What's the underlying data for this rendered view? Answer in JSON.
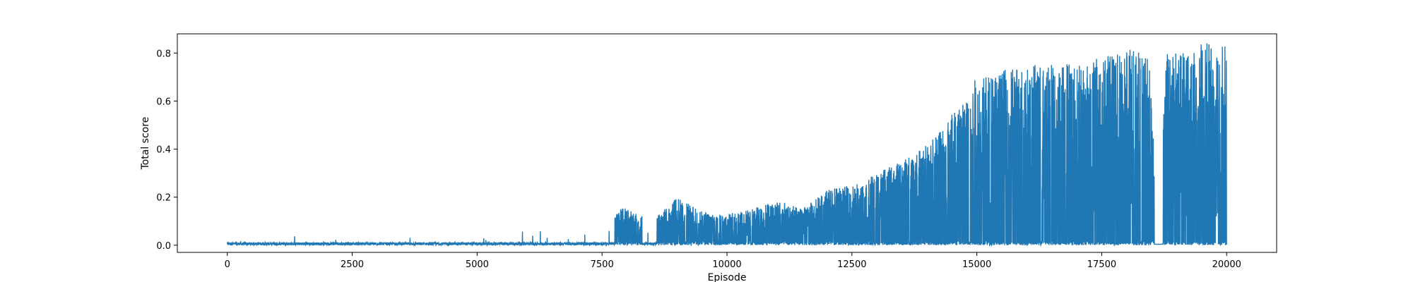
{
  "chart_data": {
    "type": "line",
    "title": "",
    "xlabel": "Episode",
    "ylabel": "Total score",
    "xlim": [
      -1000,
      21000
    ],
    "ylim": [
      -0.03,
      0.88
    ],
    "xticks": [
      0,
      2500,
      5000,
      7500,
      10000,
      12500,
      15000,
      17500,
      20000
    ],
    "yticks": [
      0.0,
      0.2,
      0.4,
      0.6,
      0.8
    ],
    "grid": false,
    "legend": "none",
    "colors": {
      "series": "#1f77b4",
      "axes": "#000000"
    },
    "series": [
      {
        "episodes": 20000,
        "min_score": 0.0,
        "max_score": 0.84,
        "envelope": [
          [
            0,
            0.01
          ],
          [
            1000,
            0.01
          ],
          [
            1300,
            0.08
          ],
          [
            1400,
            0.01
          ],
          [
            2300,
            0.03
          ],
          [
            3000,
            0.03
          ],
          [
            3500,
            0.09
          ],
          [
            4300,
            0.08
          ],
          [
            5000,
            0.03
          ],
          [
            5500,
            0.05
          ],
          [
            5900,
            0.08
          ],
          [
            6300,
            0.06
          ],
          [
            7000,
            0.05
          ],
          [
            7500,
            0.05
          ],
          [
            7900,
            0.16
          ],
          [
            8500,
            0.1
          ],
          [
            9000,
            0.2
          ],
          [
            9500,
            0.14
          ],
          [
            10000,
            0.13
          ],
          [
            10500,
            0.15
          ],
          [
            11000,
            0.19
          ],
          [
            11500,
            0.15
          ],
          [
            12000,
            0.23
          ],
          [
            12500,
            0.25
          ],
          [
            13000,
            0.3
          ],
          [
            13500,
            0.35
          ],
          [
            14000,
            0.42
          ],
          [
            14500,
            0.56
          ],
          [
            15000,
            0.7
          ],
          [
            15500,
            0.73
          ],
          [
            16000,
            0.75
          ],
          [
            16500,
            0.76
          ],
          [
            17000,
            0.77
          ],
          [
            17500,
            0.78
          ],
          [
            18000,
            0.82
          ],
          [
            18400,
            0.8
          ],
          [
            18500,
            0.7
          ],
          [
            18600,
            0.01
          ],
          [
            18800,
            0.8
          ],
          [
            19000,
            0.82
          ],
          [
            19500,
            0.84
          ],
          [
            20000,
            0.84
          ]
        ]
      }
    ]
  }
}
